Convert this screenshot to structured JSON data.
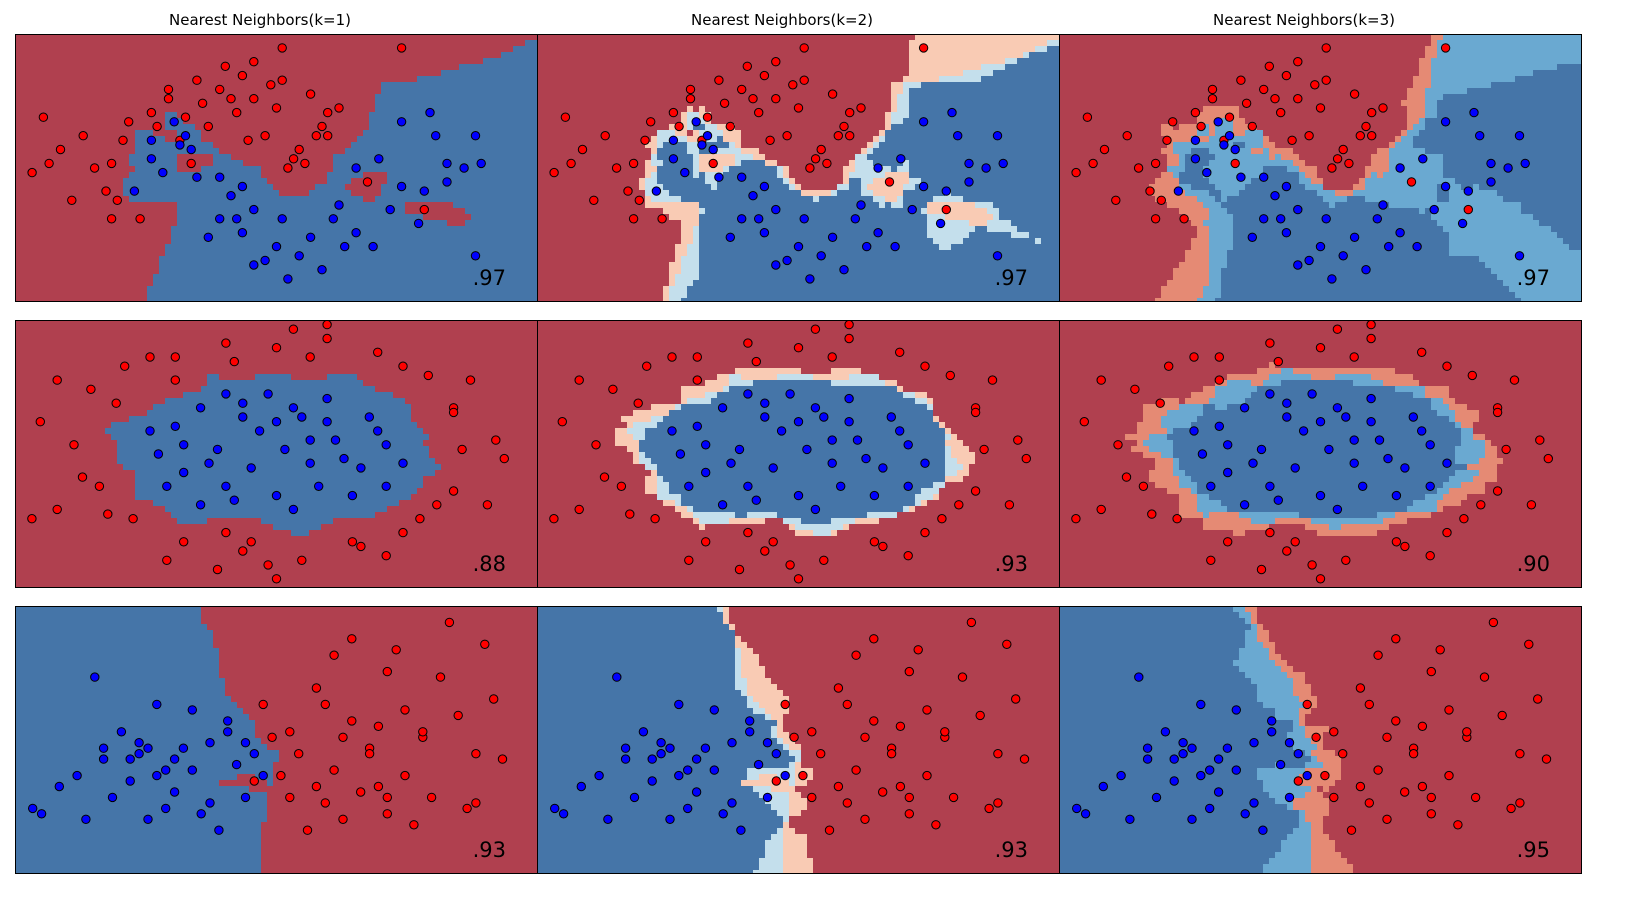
{
  "colors": {
    "red_dark": "#b0404f",
    "red_mid": "#e58a74",
    "red_light": "#f9cbb4",
    "neutral": "#f5f5f5",
    "blue_light": "#c4dfec",
    "blue_mid": "#6aa9d1",
    "blue_dark": "#4575a8",
    "point_red": "#ff0000",
    "point_blue": "#0000ff"
  },
  "chart_data": {
    "type": "scatter",
    "column_titles": [
      "Nearest Neighbors(k=1)",
      "Nearest Neighbors(k=2)",
      "Nearest Neighbors(k=3)"
    ],
    "rows": [
      {
        "dataset": "moons",
        "scores": [
          ".97",
          ".97",
          ".97"
        ]
      },
      {
        "dataset": "circles",
        "scores": [
          ".88",
          ".93",
          ".90"
        ]
      },
      {
        "dataset": "linearly_separable",
        "scores": [
          ".93",
          ".93",
          ".95"
        ]
      }
    ],
    "datasets": [
      {
        "name": "moons",
        "xlim": [
          -1.8,
          2.8
        ],
        "ylim": [
          -1.2,
          1.7
        ],
        "red": [
          [
            -0.95,
            0.3
          ],
          [
            -0.85,
            0.55
          ],
          [
            -0.6,
            0.85
          ],
          [
            -0.45,
            1.0
          ],
          [
            -0.2,
            1.2
          ],
          [
            0.05,
            1.35
          ],
          [
            0.3,
            1.4
          ],
          [
            0.55,
            1.2
          ],
          [
            0.8,
            1.05
          ],
          [
            0.95,
            0.6
          ],
          [
            0.7,
            0.45
          ],
          [
            0.4,
            0.6
          ],
          [
            0.15,
            0.85
          ],
          [
            -0.1,
            0.7
          ],
          [
            -0.35,
            0.55
          ],
          [
            -1.0,
            0.0
          ],
          [
            -0.7,
            -0.3
          ],
          [
            -1.2,
            0.6
          ],
          [
            -1.5,
            0.3
          ],
          [
            -0.3,
            0.8
          ],
          [
            0.0,
            1.1
          ],
          [
            0.5,
            0.9
          ],
          [
            1.05,
            0.9
          ],
          [
            0.6,
            0.25
          ],
          [
            -1.4,
            0.45
          ],
          [
            -0.9,
            -0.1
          ],
          [
            0.3,
            1.0
          ],
          [
            0.9,
            0.7
          ],
          [
            -0.55,
            0.7
          ],
          [
            0.2,
            1.25
          ],
          [
            1.6,
            1.55
          ],
          [
            -1.65,
            0.2
          ],
          [
            -1.3,
            -0.1
          ],
          [
            0.75,
            0.3
          ],
          [
            -0.15,
            0.95
          ],
          [
            0.45,
            1.15
          ],
          [
            0.25,
            0.55
          ],
          [
            0.1,
            1.0
          ],
          [
            -0.8,
            0.75
          ],
          [
            0.55,
            1.55
          ],
          [
            0.85,
            0.6
          ],
          [
            -0.25,
            0.3
          ],
          [
            1.3,
            0.1
          ],
          [
            -1.1,
            0.25
          ],
          [
            1.8,
            -0.2
          ],
          [
            0.95,
            0.85
          ],
          [
            -0.95,
            -0.3
          ],
          [
            -1.55,
            0.8
          ],
          [
            0.65,
            0.35
          ],
          [
            -0.45,
            1.1
          ]
        ],
        "blue": [
          [
            1.0,
            -0.3
          ],
          [
            0.8,
            -0.5
          ],
          [
            0.5,
            -0.6
          ],
          [
            0.2,
            -0.45
          ],
          [
            0.0,
            -0.3
          ],
          [
            -0.2,
            0.15
          ],
          [
            -0.35,
            0.5
          ],
          [
            0.1,
            -0.05
          ],
          [
            1.2,
            -0.45
          ],
          [
            1.5,
            -0.2
          ],
          [
            1.8,
            0.0
          ],
          [
            2.0,
            0.3
          ],
          [
            1.9,
            0.6
          ],
          [
            1.6,
            0.75
          ],
          [
            1.4,
            0.35
          ],
          [
            0.7,
            -0.7
          ],
          [
            0.3,
            -0.2
          ],
          [
            -0.1,
            -0.5
          ],
          [
            0.55,
            -0.3
          ],
          [
            1.05,
            -0.15
          ],
          [
            2.0,
            0.1
          ],
          [
            2.3,
            0.3
          ],
          [
            2.25,
            -0.7
          ],
          [
            1.75,
            -0.35
          ],
          [
            1.35,
            -0.6
          ],
          [
            0.9,
            -0.85
          ],
          [
            0.6,
            -0.95
          ],
          [
            0.15,
            -0.3
          ],
          [
            -0.6,
            0.55
          ],
          [
            -0.3,
            0.6
          ],
          [
            -0.5,
            0.2
          ],
          [
            0.2,
            0.05
          ],
          [
            1.6,
            0.05
          ],
          [
            2.15,
            0.25
          ],
          [
            1.85,
            0.85
          ],
          [
            2.25,
            0.6
          ],
          [
            1.2,
            0.25
          ],
          [
            0.4,
            -0.75
          ],
          [
            -0.4,
            0.75
          ],
          [
            -0.75,
            0.0
          ],
          [
            -0.25,
            0.45
          ],
          [
            0.0,
            0.15
          ],
          [
            1.1,
            -0.6
          ],
          [
            0.3,
            -0.8
          ],
          [
            -0.6,
            0.35
          ]
        ]
      },
      {
        "name": "circles",
        "xlim": [
          -1.55,
          1.55
        ],
        "ylim": [
          -1.45,
          1.45
        ],
        "red": [
          [
            -1.1,
            0.7
          ],
          [
            -0.9,
            0.95
          ],
          [
            -0.6,
            1.05
          ],
          [
            -0.3,
            1.2
          ],
          [
            0.0,
            1.15
          ],
          [
            0.3,
            1.25
          ],
          [
            0.6,
            1.1
          ],
          [
            0.9,
            0.85
          ],
          [
            1.05,
            0.5
          ],
          [
            1.1,
            0.05
          ],
          [
            1.05,
            -0.4
          ],
          [
            0.85,
            -0.7
          ],
          [
            0.5,
            -1.0
          ],
          [
            0.15,
            -1.15
          ],
          [
            -0.2,
            -1.05
          ],
          [
            -0.55,
            -0.95
          ],
          [
            -0.85,
            -0.7
          ],
          [
            -1.05,
            -0.35
          ],
          [
            -1.2,
            0.1
          ],
          [
            -1.3,
            -0.6
          ],
          [
            -1.4,
            0.35
          ],
          [
            1.3,
            0.15
          ],
          [
            1.25,
            -0.55
          ],
          [
            0.3,
            1.4
          ],
          [
            -0.35,
            -1.25
          ],
          [
            -0.95,
            0.55
          ],
          [
            0.65,
            -1.1
          ],
          [
            -0.75,
            1.05
          ],
          [
            1.15,
            0.8
          ],
          [
            0.95,
            -0.55
          ],
          [
            -1.3,
            0.8
          ],
          [
            -1.15,
            -0.25
          ],
          [
            -0.25,
            1.0
          ],
          [
            0.1,
            1.35
          ],
          [
            0.45,
            -0.95
          ],
          [
            -0.05,
            -1.2
          ],
          [
            0.75,
            0.95
          ],
          [
            1.35,
            -0.05
          ],
          [
            -0.65,
            -1.15
          ],
          [
            -1.0,
            -0.65
          ],
          [
            -0.6,
            0.8
          ],
          [
            0.2,
            1.05
          ],
          [
            -0.3,
            -0.85
          ],
          [
            -0.15,
            -0.95
          ],
          [
            0.75,
            -0.85
          ],
          [
            1.05,
            0.45
          ],
          [
            -1.45,
            -0.7
          ],
          [
            0.0,
            -1.35
          ]
        ],
        "blue": [
          [
            -0.6,
            0.3
          ],
          [
            -0.45,
            0.5
          ],
          [
            -0.2,
            0.55
          ],
          [
            0.1,
            0.5
          ],
          [
            0.3,
            0.35
          ],
          [
            0.55,
            0.4
          ],
          [
            0.65,
            0.1
          ],
          [
            0.5,
            -0.15
          ],
          [
            0.25,
            -0.35
          ],
          [
            0.0,
            -0.45
          ],
          [
            -0.3,
            -0.35
          ],
          [
            -0.55,
            -0.2
          ],
          [
            -0.7,
            0.0
          ],
          [
            -0.35,
            0.05
          ],
          [
            0.05,
            0.05
          ],
          [
            0.2,
            0.15
          ],
          [
            -0.1,
            0.25
          ],
          [
            -0.4,
            -0.1
          ],
          [
            0.4,
            -0.05
          ],
          [
            -0.15,
            -0.15
          ],
          [
            0.3,
            0.6
          ],
          [
            -0.65,
            -0.35
          ],
          [
            0.75,
            -0.1
          ],
          [
            0.1,
            -0.6
          ],
          [
            -0.3,
            0.65
          ],
          [
            -0.75,
            0.25
          ],
          [
            0.45,
            -0.45
          ],
          [
            -0.45,
            -0.55
          ],
          [
            0.0,
            0.35
          ],
          [
            -0.25,
            -0.5
          ],
          [
            0.2,
            -0.1
          ],
          [
            -0.05,
            0.65
          ],
          [
            0.6,
            0.25
          ],
          [
            -0.55,
            0.1
          ],
          [
            0.35,
            0.15
          ],
          [
            -0.2,
            0.4
          ],
          [
            0.15,
            0.4
          ],
          [
            0.65,
            -0.35
          ]
        ]
      },
      {
        "name": "linearly_separable",
        "xlim": [
          -2.6,
          3.3
        ],
        "ylim": [
          -1.6,
          3.3
        ],
        "red": [
          [
            0.2,
            1.5
          ],
          [
            0.5,
            1.0
          ],
          [
            0.8,
            1.8
          ],
          [
            1.0,
            2.4
          ],
          [
            1.2,
            1.2
          ],
          [
            1.4,
            0.7
          ],
          [
            1.6,
            2.1
          ],
          [
            1.8,
            1.4
          ],
          [
            2.0,
            0.9
          ],
          [
            2.2,
            2.0
          ],
          [
            2.4,
            1.3
          ],
          [
            2.6,
            0.6
          ],
          [
            2.8,
            1.6
          ],
          [
            1.0,
            0.3
          ],
          [
            1.3,
            -0.1
          ],
          [
            1.6,
            -0.5
          ],
          [
            0.6,
            0.6
          ],
          [
            0.9,
            -0.3
          ],
          [
            1.8,
            0.2
          ],
          [
            2.1,
            -0.2
          ],
          [
            2.5,
            -0.4
          ],
          [
            0.4,
            0.2
          ],
          [
            1.1,
            0.9
          ],
          [
            1.5,
            1.1
          ],
          [
            0.7,
            -0.8
          ],
          [
            2.3,
            3.0
          ],
          [
            1.7,
            2.5
          ],
          [
            2.7,
            2.6
          ],
          [
            1.2,
            2.7
          ],
          [
            0.3,
            0.9
          ],
          [
            0.8,
            0.0
          ],
          [
            1.9,
            -0.7
          ],
          [
            2.9,
            0.5
          ],
          [
            0.1,
            0.1
          ],
          [
            1.4,
            0.6
          ],
          [
            2.0,
            1.0
          ],
          [
            1.1,
            -0.6
          ],
          [
            1.5,
            0.0
          ],
          [
            0.5,
            -0.2
          ],
          [
            2.6,
            -0.3
          ],
          [
            0.9,
            1.5
          ],
          [
            1.6,
            -0.2
          ]
        ],
        "blue": [
          [
            -2.3,
            -0.5
          ],
          [
            -2.1,
            0.0
          ],
          [
            -1.8,
            -0.6
          ],
          [
            -1.6,
            0.5
          ],
          [
            -1.4,
            1.0
          ],
          [
            -1.2,
            0.6
          ],
          [
            -1.0,
            0.2
          ],
          [
            -0.8,
            -0.1
          ],
          [
            -0.6,
            0.3
          ],
          [
            -0.4,
            0.8
          ],
          [
            -0.2,
            1.2
          ],
          [
            -0.1,
            0.4
          ],
          [
            0.1,
            0.6
          ],
          [
            -0.5,
            -0.5
          ],
          [
            -0.9,
            -0.4
          ],
          [
            -1.1,
            0.7
          ],
          [
            -1.3,
            0.1
          ],
          [
            -0.7,
            0.7
          ],
          [
            0.0,
            -0.2
          ],
          [
            -1.9,
            0.2
          ],
          [
            -1.5,
            -0.2
          ],
          [
            -0.3,
            -0.8
          ],
          [
            -1.0,
            1.5
          ],
          [
            -1.7,
            2.0
          ],
          [
            -0.6,
            1.4
          ],
          [
            -2.4,
            -0.4
          ],
          [
            -1.2,
            0.8
          ],
          [
            -0.8,
            0.5
          ],
          [
            0.2,
            0.2
          ],
          [
            -0.4,
            -0.3
          ],
          [
            -1.6,
            0.7
          ],
          [
            -1.3,
            0.5
          ],
          [
            -0.2,
            1.0
          ],
          [
            0.0,
            0.8
          ],
          [
            -1.1,
            -0.6
          ],
          [
            -0.9,
            0.3
          ]
        ]
      }
    ]
  }
}
